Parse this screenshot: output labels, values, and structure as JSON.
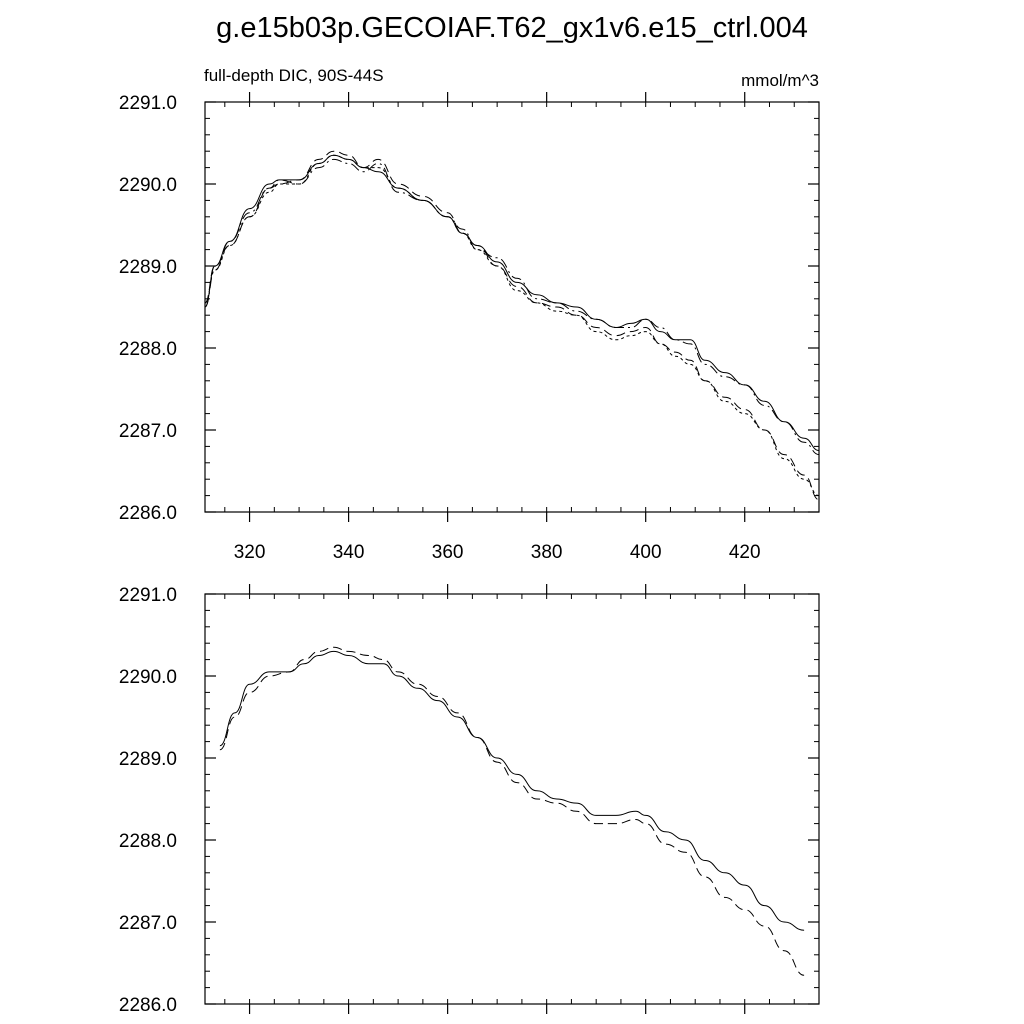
{
  "chart_data": [
    {
      "type": "line",
      "title": "g.e15b03p.GECOIAF.T62_gx1v6.e15_ctrl.004",
      "left_label": "full-depth DIC, 90S-44S",
      "right_label": "mmol/m^3",
      "xlim": [
        311,
        435
      ],
      "ylim": [
        2286.0,
        2291.0
      ],
      "x_ticks": [
        320,
        340,
        360,
        380,
        400,
        420
      ],
      "y_ticks": [
        "2286.0",
        "2287.0",
        "2288.0",
        "2289.0",
        "2290.0",
        "2291.0"
      ],
      "show_x_tick_labels": true,
      "series": [
        {
          "style": "solid",
          "x": [
            311,
            313,
            316,
            320,
            324,
            326,
            330,
            334,
            337,
            340,
            343,
            346,
            350,
            355,
            360,
            363,
            366,
            370,
            374,
            378,
            382,
            386,
            390,
            394,
            397,
            400,
            403,
            406,
            409,
            412,
            416,
            420,
            424,
            428,
            432,
            435
          ],
          "y": [
            2288.5,
            2289.0,
            2289.3,
            2289.7,
            2290.0,
            2290.05,
            2290.05,
            2290.25,
            2290.35,
            2290.3,
            2290.2,
            2290.15,
            2289.95,
            2289.8,
            2289.6,
            2289.4,
            2289.25,
            2289.05,
            2288.8,
            2288.65,
            2288.55,
            2288.5,
            2288.35,
            2288.25,
            2288.3,
            2288.35,
            2288.2,
            2288.1,
            2288.1,
            2287.85,
            2287.7,
            2287.55,
            2287.35,
            2287.1,
            2286.9,
            2286.75
          ]
        },
        {
          "style": "dashed",
          "x": [
            311,
            313,
            316,
            320,
            324,
            326,
            330,
            334,
            337,
            340,
            343,
            346,
            350,
            355,
            360,
            363,
            366,
            370,
            374,
            378,
            382,
            386,
            390,
            394,
            397,
            400,
            403,
            406,
            409,
            412,
            416,
            420,
            424,
            428,
            432,
            435
          ],
          "y": [
            2288.55,
            2289.0,
            2289.25,
            2289.6,
            2289.95,
            2290.0,
            2290.05,
            2290.3,
            2290.4,
            2290.35,
            2290.2,
            2290.3,
            2290.0,
            2289.85,
            2289.65,
            2289.4,
            2289.25,
            2289.0,
            2288.75,
            2288.55,
            2288.5,
            2288.4,
            2288.25,
            2288.15,
            2288.2,
            2288.25,
            2288.05,
            2287.95,
            2287.85,
            2287.6,
            2287.4,
            2287.25,
            2287.0,
            2286.7,
            2286.45,
            2286.15
          ]
        },
        {
          "style": "dashdot",
          "x": [
            311,
            313,
            316,
            320,
            324,
            326,
            330,
            334,
            337,
            340,
            343,
            346,
            350,
            355,
            360,
            363,
            366,
            370,
            374,
            378,
            382,
            386,
            390,
            394,
            397,
            400,
            403,
            406,
            409,
            412,
            416,
            420,
            424,
            428,
            432,
            435
          ],
          "y": [
            2288.5,
            2288.95,
            2289.3,
            2289.65,
            2289.95,
            2290.05,
            2290.0,
            2290.2,
            2290.3,
            2290.25,
            2290.15,
            2290.25,
            2289.9,
            2289.8,
            2289.6,
            2289.45,
            2289.2,
            2289.1,
            2288.85,
            2288.6,
            2288.55,
            2288.45,
            2288.35,
            2288.25,
            2288.25,
            2288.35,
            2288.25,
            2288.1,
            2288.05,
            2287.8,
            2287.65,
            2287.55,
            2287.3,
            2287.1,
            2286.85,
            2286.7
          ]
        },
        {
          "style": "dotted",
          "x": [
            311,
            313,
            316,
            320,
            324,
            326,
            330,
            334,
            337,
            340,
            343,
            346,
            350,
            355,
            360,
            363,
            366,
            370,
            374,
            378,
            382,
            386,
            390,
            394,
            397,
            400,
            403,
            406,
            409,
            412,
            416,
            420,
            424,
            428,
            432,
            435
          ],
          "y": [
            2288.55,
            2288.95,
            2289.25,
            2289.6,
            2289.9,
            2290.0,
            2290.0,
            2290.25,
            2290.35,
            2290.3,
            2290.2,
            2290.2,
            2289.95,
            2289.8,
            2289.6,
            2289.4,
            2289.2,
            2289.0,
            2288.7,
            2288.55,
            2288.45,
            2288.4,
            2288.2,
            2288.1,
            2288.15,
            2288.2,
            2288.05,
            2287.9,
            2287.8,
            2287.6,
            2287.35,
            2287.2,
            2287.0,
            2286.65,
            2286.4,
            2286.2
          ]
        }
      ]
    },
    {
      "type": "line",
      "xlim": [
        311,
        435
      ],
      "ylim": [
        2286.0,
        2291.0
      ],
      "x_ticks": [
        320,
        340,
        360,
        380,
        400,
        420
      ],
      "y_ticks": [
        "2286.0",
        "2287.0",
        "2288.0",
        "2289.0",
        "2290.0",
        "2291.0"
      ],
      "show_x_tick_labels": false,
      "series": [
        {
          "style": "solid",
          "x": [
            314,
            317,
            320,
            324,
            328,
            331,
            334,
            337,
            340,
            344,
            347,
            350,
            354,
            358,
            362,
            366,
            370,
            374,
            378,
            382,
            386,
            390,
            394,
            398,
            400,
            404,
            408,
            412,
            416,
            420,
            424,
            428,
            432
          ],
          "y": [
            2289.15,
            2289.55,
            2289.9,
            2290.05,
            2290.05,
            2290.15,
            2290.25,
            2290.3,
            2290.25,
            2290.15,
            2290.15,
            2290.0,
            2289.85,
            2289.7,
            2289.5,
            2289.25,
            2289.0,
            2288.8,
            2288.6,
            2288.5,
            2288.45,
            2288.3,
            2288.3,
            2288.35,
            2288.3,
            2288.1,
            2288.0,
            2287.75,
            2287.6,
            2287.45,
            2287.2,
            2287.0,
            2286.9
          ]
        },
        {
          "style": "dashed",
          "x": [
            314,
            317,
            320,
            324,
            328,
            331,
            334,
            337,
            340,
            344,
            347,
            350,
            354,
            358,
            362,
            366,
            370,
            374,
            378,
            382,
            386,
            390,
            394,
            398,
            400,
            404,
            408,
            412,
            416,
            420,
            424,
            428,
            432
          ],
          "y": [
            2289.1,
            2289.5,
            2289.8,
            2290.0,
            2290.05,
            2290.2,
            2290.3,
            2290.35,
            2290.3,
            2290.25,
            2290.2,
            2290.05,
            2289.9,
            2289.75,
            2289.55,
            2289.25,
            2288.95,
            2288.7,
            2288.5,
            2288.45,
            2288.35,
            2288.2,
            2288.2,
            2288.25,
            2288.2,
            2287.95,
            2287.85,
            2287.55,
            2287.3,
            2287.15,
            2286.95,
            2286.65,
            2286.35
          ]
        }
      ]
    }
  ]
}
